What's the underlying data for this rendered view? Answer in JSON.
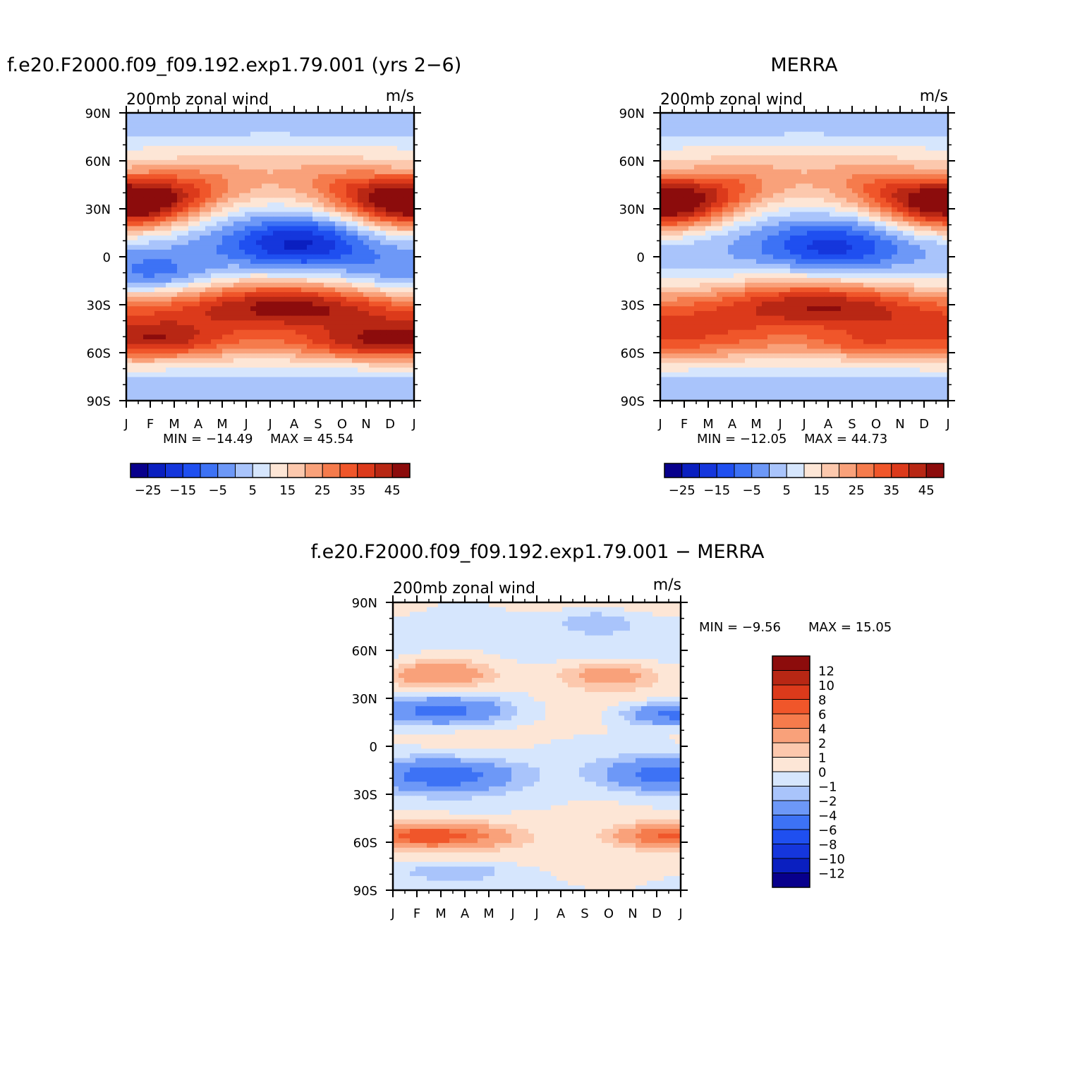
{
  "chart_data": [
    {
      "type": "heatmap",
      "id": "model",
      "title": "f.e20.F2000.f09_f09.192.exp1.79.001 (yrs 2−6)",
      "left_label": "200mb zonal wind",
      "units": "m/s",
      "x_ticks": [
        "J",
        "F",
        "M",
        "A",
        "M",
        "J",
        "J",
        "A",
        "S",
        "O",
        "N",
        "D",
        "J"
      ],
      "y_ticks": [
        "90N",
        "60N",
        "30N",
        "0",
        "30S",
        "60S",
        "90S"
      ],
      "ylim": [
        -90,
        90
      ],
      "min_text": "MIN = −14.49",
      "max_text": "MAX =   45.54",
      "levels": [
        -30,
        -25,
        -20,
        -15,
        -10,
        -5,
        0,
        5,
        10,
        15,
        20,
        25,
        30,
        35,
        40,
        45
      ],
      "colorbar_labels": [
        "−25",
        "−15",
        "−5",
        "5",
        "15",
        "25",
        "35",
        "45"
      ],
      "colors": [
        "#08008c",
        "#0a1fc0",
        "#1536dc",
        "#1f4ff0",
        "#3d72f5",
        "#6d98f7",
        "#a9c4fb",
        "#d6e6fd",
        "#fde6d6",
        "#fcc8ad",
        "#f9a17a",
        "#f57b4c",
        "#f0562a",
        "#dc3a1b",
        "#b82714",
        "#8c0c0c"
      ],
      "features": [
        {
          "lat": 33,
          "month": 0.1,
          "amp": 16,
          "lat_w": 11,
          "mon_w": 1.8
        },
        {
          "lat": 33,
          "month": 12.0,
          "amp": 14,
          "lat_w": 11,
          "mon_w": 1.8
        },
        {
          "lat": 8,
          "month": 7.1,
          "amp": -22,
          "lat_w": 12,
          "mon_w": 2.0
        },
        {
          "lat": -12,
          "month": 1.2,
          "amp": -13,
          "lat_w": 9,
          "mon_w": 1.8
        },
        {
          "lat": -12,
          "month": 12.0,
          "amp": -10,
          "lat_w": 9,
          "mon_w": 1.8
        },
        {
          "lat": -31,
          "month": 6.8,
          "amp": 14,
          "lat_w": 9,
          "mon_w": 2.6
        },
        {
          "lat": -53,
          "month": 1.5,
          "amp": 10,
          "lat_w": 7,
          "mon_w": 1.8
        },
        {
          "lat": -55,
          "month": 9.5,
          "amp": 10,
          "lat_w": 7,
          "mon_w": 1.8
        },
        {
          "lat": -52,
          "month": 12.0,
          "amp": 8,
          "lat_w": 7,
          "mon_w": 1.5
        }
      ]
    },
    {
      "type": "heatmap",
      "id": "obs",
      "title": "MERRA",
      "left_label": "200mb zonal wind",
      "units": "m/s",
      "x_ticks": [
        "J",
        "F",
        "M",
        "A",
        "M",
        "J",
        "J",
        "A",
        "S",
        "O",
        "N",
        "D",
        "J"
      ],
      "y_ticks": [
        "90N",
        "60N",
        "30N",
        "0",
        "30S",
        "60S",
        "90S"
      ],
      "ylim": [
        -90,
        90
      ],
      "min_text": "MIN = −12.05",
      "max_text": "MAX =   44.73",
      "levels": [
        -30,
        -25,
        -20,
        -15,
        -10,
        -5,
        0,
        5,
        10,
        15,
        20,
        25,
        30,
        35,
        40,
        45
      ],
      "colorbar_labels": [
        "−25",
        "−15",
        "−5",
        "5",
        "15",
        "25",
        "35",
        "45"
      ],
      "colors": [
        "#08008c",
        "#0a1fc0",
        "#1536dc",
        "#1f4ff0",
        "#3d72f5",
        "#6d98f7",
        "#a9c4fb",
        "#d6e6fd",
        "#fde6d6",
        "#fcc8ad",
        "#f9a17a",
        "#f57b4c",
        "#f0562a",
        "#dc3a1b",
        "#b82714",
        "#8c0c0c"
      ],
      "features": [
        {
          "lat": 31,
          "month": 0.1,
          "amp": 14,
          "lat_w": 11,
          "mon_w": 1.8
        },
        {
          "lat": 31,
          "month": 12.0,
          "amp": 12,
          "lat_w": 11,
          "mon_w": 1.8
        },
        {
          "lat": 6,
          "month": 7.1,
          "amp": -18,
          "lat_w": 12,
          "mon_w": 2.0
        },
        {
          "lat": -30,
          "month": 6.8,
          "amp": 12,
          "lat_w": 9,
          "mon_w": 2.6
        },
        {
          "lat": -55,
          "month": 8.2,
          "amp": 6,
          "lat_w": 5,
          "mon_w": 1.2
        }
      ]
    },
    {
      "type": "heatmap",
      "id": "diff",
      "title": "f.e20.F2000.f09_f09.192.exp1.79.001 − MERRA",
      "left_label": "200mb zonal wind",
      "units": "m/s",
      "x_ticks": [
        "J",
        "F",
        "M",
        "A",
        "M",
        "J",
        "J",
        "A",
        "S",
        "O",
        "N",
        "D",
        "J"
      ],
      "y_ticks": [
        "90N",
        "60N",
        "30N",
        "0",
        "30S",
        "60S",
        "90S"
      ],
      "ylim": [
        -90,
        90
      ],
      "min_text": "MIN =   −9.56",
      "max_text": "MAX =   15.05",
      "levels": [
        -14,
        -12,
        -10,
        -8,
        -6,
        -4,
        -2,
        -1,
        0,
        1,
        2,
        4,
        6,
        8,
        10,
        12,
        14
      ],
      "colorbar_labels": [
        "12",
        "10",
        "8",
        "6",
        "4",
        "2",
        "1",
        "0",
        "−1",
        "−2",
        "−4",
        "−6",
        "−8",
        "−10",
        "−12"
      ],
      "colors": [
        "#08008c",
        "#0a1fc0",
        "#1536dc",
        "#1f4ff0",
        "#3d72f5",
        "#6d98f7",
        "#a9c4fb",
        "#d6e6fd",
        "#fde6d6",
        "#fcc8ad",
        "#f9a17a",
        "#f57b4c",
        "#f0562a",
        "#dc3a1b",
        "#b82714",
        "#8c0c0c"
      ],
      "features": [
        {
          "lat": 45,
          "month": 2.0,
          "amp": 4,
          "lat_w": 6,
          "mon_w": 1.5
        },
        {
          "lat": 45,
          "month": 9.0,
          "amp": 3,
          "lat_w": 6,
          "mon_w": 1.5
        },
        {
          "lat": 22,
          "month": 2.0,
          "amp": -5,
          "lat_w": 6,
          "mon_w": 2.0
        },
        {
          "lat": 20,
          "month": 11.8,
          "amp": -5,
          "lat_w": 5,
          "mon_w": 1.5
        },
        {
          "lat": -18,
          "month": 2.0,
          "amp": -5,
          "lat_w": 7,
          "mon_w": 2.0
        },
        {
          "lat": -18,
          "month": 11.5,
          "amp": -5,
          "lat_w": 7,
          "mon_w": 1.8
        },
        {
          "lat": -56,
          "month": 1.5,
          "amp": 7,
          "lat_w": 5,
          "mon_w": 2.0
        },
        {
          "lat": -56,
          "month": 11.5,
          "amp": 6,
          "lat_w": 5,
          "mon_w": 1.5
        },
        {
          "lat": 78,
          "month": 8.5,
          "amp": -2,
          "lat_w": 5,
          "mon_w": 1.2
        },
        {
          "lat": -78,
          "month": 2.5,
          "amp": -2,
          "lat_w": 4,
          "mon_w": 1.5
        }
      ]
    }
  ]
}
